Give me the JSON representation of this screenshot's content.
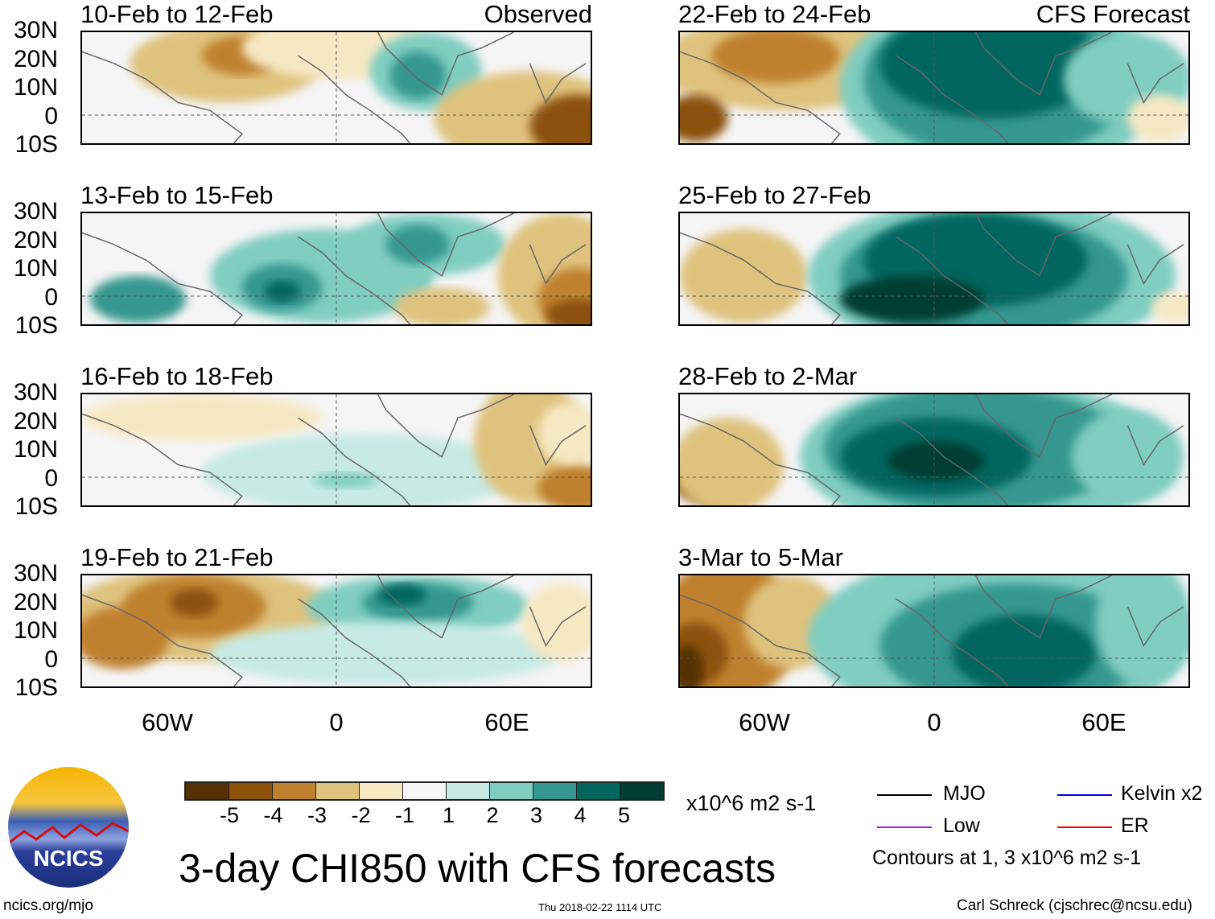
{
  "headers": {
    "observed": "Observed",
    "forecast": "CFS Forecast"
  },
  "panels": [
    {
      "title": "10-Feb to 12-Feb",
      "group": "observed"
    },
    {
      "title": "13-Feb to 15-Feb",
      "group": "observed"
    },
    {
      "title": "16-Feb to 18-Feb",
      "group": "observed"
    },
    {
      "title": "19-Feb to 21-Feb",
      "group": "observed"
    },
    {
      "title": "22-Feb to 24-Feb",
      "group": "forecast"
    },
    {
      "title": "25-Feb to 27-Feb",
      "group": "forecast"
    },
    {
      "title": "28-Feb to 2-Mar",
      "group": "forecast"
    },
    {
      "title": "3-Mar to 5-Mar",
      "group": "forecast"
    }
  ],
  "lat_labels": [
    "30N",
    "20N",
    "10N",
    "0",
    "10S"
  ],
  "lon_labels": [
    "60W",
    "0",
    "60E"
  ],
  "colorbar": {
    "colors": [
      "#543005",
      "#8c510a",
      "#bf812d",
      "#dfc27d",
      "#f6e8c3",
      "#f5f5f5",
      "#c7eae5",
      "#80cdc1",
      "#35978f",
      "#01665e",
      "#003c30"
    ],
    "labels": [
      "-5",
      "-4",
      "-3",
      "-2",
      "-1",
      "1",
      "2",
      "3",
      "4",
      "5"
    ],
    "units": "x10^6 m2 s-1"
  },
  "legend": {
    "items": [
      {
        "label": "MJO",
        "color": "#000000"
      },
      {
        "label": "Low",
        "color": "#a020f0"
      },
      {
        "label": "Kelvin x2",
        "color": "#0000ff"
      },
      {
        "label": "ER",
        "color": "#ff0000"
      }
    ],
    "note": "Contours at 1, 3 x10^6 m2 s-1"
  },
  "title": "3-day CHI850 with CFS forecasts",
  "logo_text": "NCICS",
  "footer": {
    "left": "ncics.org/mjo",
    "center": "Thu 2018-02-22 1114 UTC",
    "right": "Carl Schreck (cjschrec@ncsu.edu)"
  }
}
